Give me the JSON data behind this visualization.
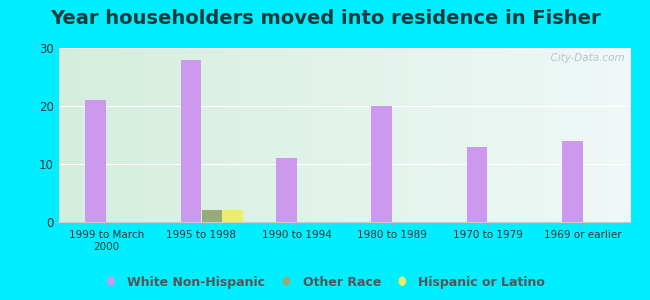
{
  "title": "Year householders moved into residence in Fisher",
  "categories": [
    "1999 to March\n2000",
    "1995 to 1998",
    "1990 to 1994",
    "1980 to 1989",
    "1970 to 1979",
    "1969 or earlier"
  ],
  "white_non_hispanic": [
    21,
    28,
    11,
    20,
    13,
    14
  ],
  "other_race": [
    0,
    2,
    0,
    0,
    0,
    0
  ],
  "hispanic_or_latino": [
    0,
    2,
    0,
    0,
    0,
    0
  ],
  "bar_width": 0.22,
  "white_color": "#cc99ee",
  "other_color": "#99aa77",
  "hispanic_color": "#eeee66",
  "ylim": [
    0,
    30
  ],
  "yticks": [
    0,
    10,
    20,
    30
  ],
  "background_outer": "#00eeff",
  "background_plot_left": "#d4eedd",
  "background_plot_right": "#f0f8f8",
  "watermark": "  City-Data.com",
  "title_fontsize": 14,
  "title_color": "#1a3a3a",
  "legend_fontsize": 9,
  "legend_color": "#555555"
}
